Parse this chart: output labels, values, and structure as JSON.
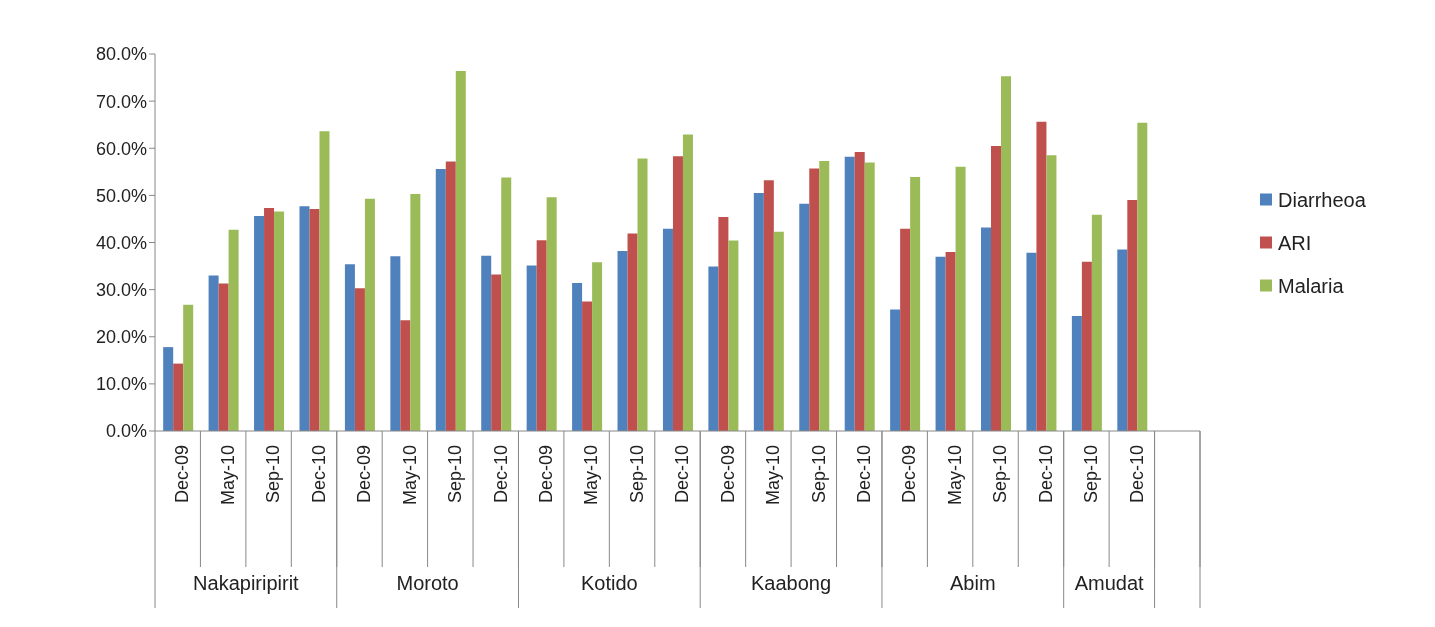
{
  "chart_data": {
    "type": "bar",
    "categories": [
      "Dec-09",
      "May-10",
      "Sep-10",
      "Dec-10",
      "Dec-09",
      "May-10",
      "Sep-10",
      "Dec-10",
      "Dec-09",
      "May-10",
      "Sep-10",
      "Dec-10",
      "Dec-09",
      "May-10",
      "Sep-10",
      "Dec-10",
      "Dec-09",
      "May-10",
      "Sep-10",
      "Dec-10",
      "Sep-10",
      "Dec-10",
      null
    ],
    "series": [
      {
        "name": "Diarrheoa",
        "color": "#4f81bd",
        "values": [
          17.8,
          33,
          45.6,
          47.7,
          35.4,
          37.1,
          55.6,
          37.2,
          35.1,
          31.4,
          38.2,
          42.9,
          34.9,
          50.5,
          48.2,
          58.2,
          25.8,
          37.0,
          43.2,
          37.8,
          24.4,
          38.5,
          null
        ]
      },
      {
        "name": "ARI",
        "color": "#c0504d",
        "values": [
          14.3,
          31.3,
          47.3,
          47.1,
          30.3,
          23.5,
          57.2,
          33.2,
          40.5,
          27.5,
          41.9,
          58.3,
          45.4,
          53.2,
          55.7,
          59.2,
          42.9,
          38.0,
          60.5,
          65.6,
          35.9,
          49.0,
          null
        ]
      },
      {
        "name": "Malaria",
        "color": "#9bbb59",
        "values": [
          26.8,
          42.7,
          46.6,
          63.6,
          49.3,
          50.3,
          76.4,
          53.8,
          49.6,
          35.8,
          57.8,
          62.9,
          40.4,
          42.3,
          57.3,
          57.0,
          53.9,
          56.1,
          75.3,
          58.5,
          45.9,
          65.4,
          null
        ]
      }
    ],
    "annotations": [
      "Nakapiripirit",
      "Moroto",
      "Kotido",
      "Kaabong",
      "Abim",
      "Amudat"
    ],
    "ylim": [
      0,
      80
    ],
    "yticks": [
      {
        "value": 0,
        "label": "0.0%"
      },
      {
        "value": 10,
        "label": "10.0%"
      },
      {
        "value": 20,
        "label": "20.0%"
      },
      {
        "value": 30,
        "label": "30.0%"
      },
      {
        "value": 40,
        "label": "40.0%"
      },
      {
        "value": 50,
        "label": "50.0%"
      },
      {
        "value": 60,
        "label": "60.0%"
      },
      {
        "value": 70,
        "label": "70.0%"
      },
      {
        "value": 80,
        "label": "80.0%"
      }
    ],
    "grid": false,
    "legend": "right"
  }
}
